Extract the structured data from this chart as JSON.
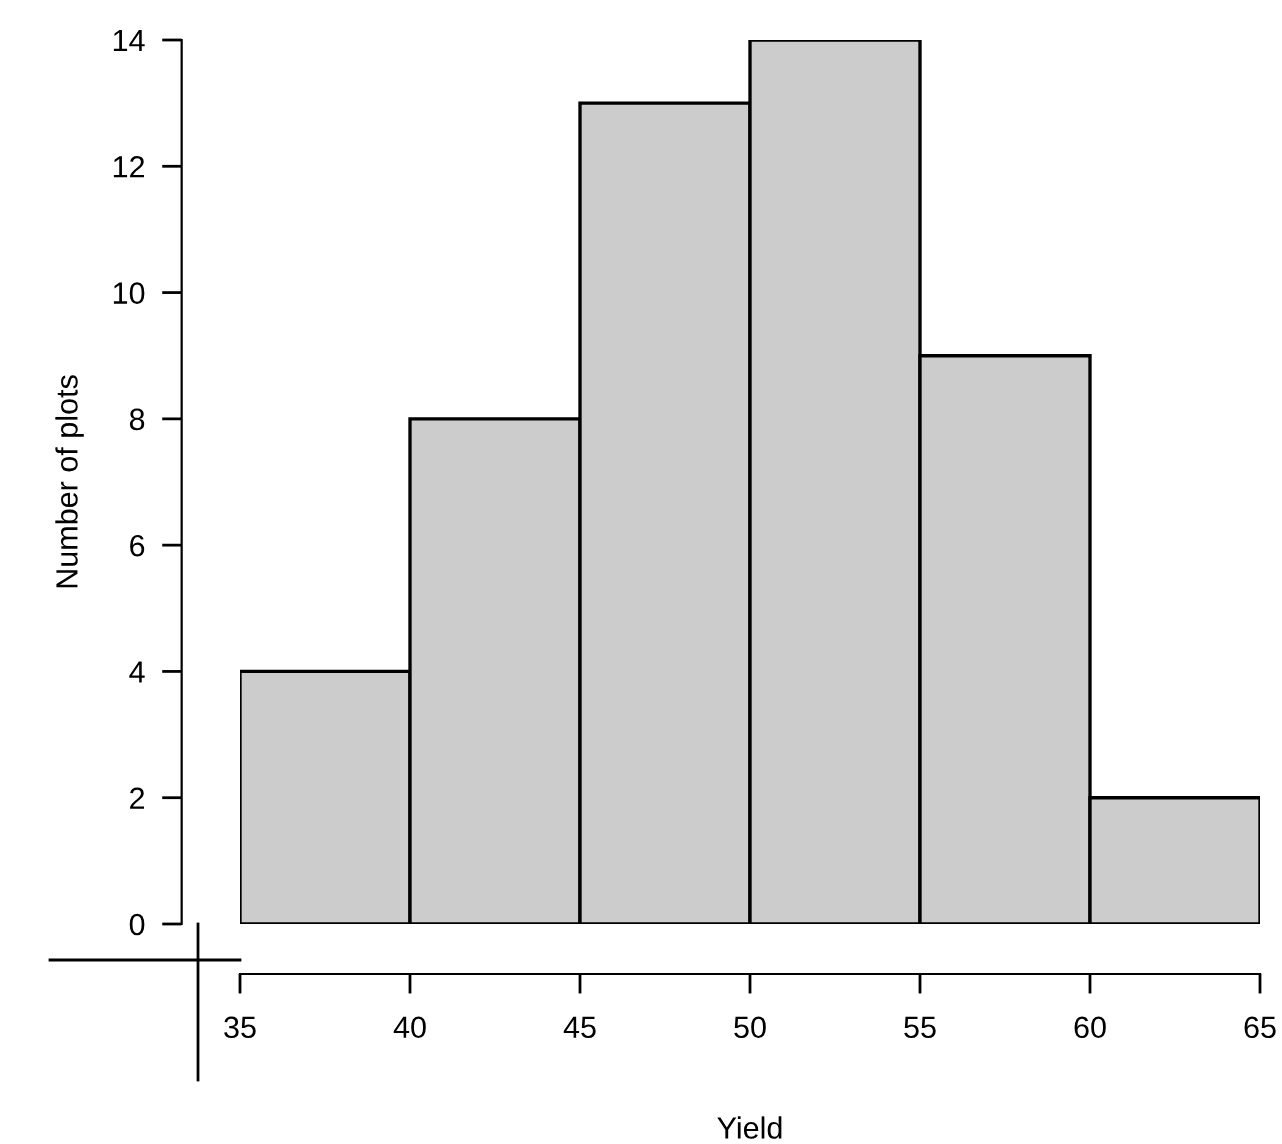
{
  "chart_data": {
    "type": "histogram",
    "xlabel": "Yield",
    "ylabel": "Number of plots",
    "bins": [
      35,
      40,
      45,
      50,
      55,
      60,
      65
    ],
    "values": [
      4,
      8,
      13,
      14,
      9,
      2
    ],
    "color": "#cccccc",
    "xlim": [
      35,
      65
    ],
    "ylim": [
      0,
      14
    ],
    "xticks": [
      35,
      40,
      45,
      50,
      55,
      60,
      65
    ],
    "yticks": [
      0,
      2,
      4,
      6,
      8,
      10,
      12,
      14
    ],
    "grid": false
  }
}
